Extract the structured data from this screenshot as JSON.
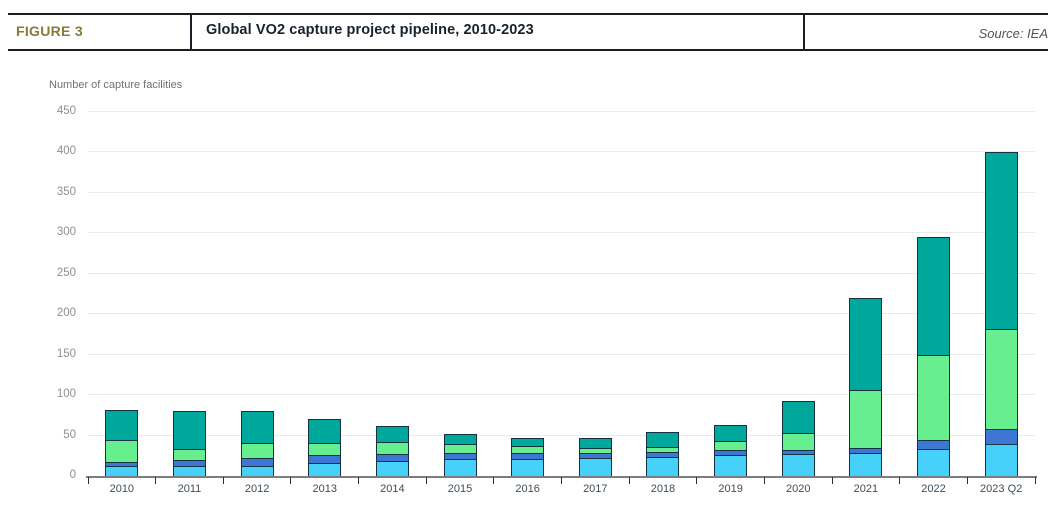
{
  "header": {
    "figure_label": "FIGURE 3",
    "title": "Global VO2 capture project pipeline, 2010-2023",
    "source": "Source: IEA"
  },
  "chart_data": {
    "type": "bar",
    "stacked": true,
    "title": "Global VO2 capture project pipeline, 2010-2023",
    "ylabel": "Number of capture facilities",
    "xlabel": "",
    "ylim": [
      0,
      450
    ],
    "yticks": [
      0,
      50,
      100,
      150,
      200,
      250,
      300,
      350,
      400,
      450
    ],
    "grid": true,
    "legend_visible": false,
    "categories": [
      "2010",
      "2011",
      "2012",
      "2013",
      "2014",
      "2015",
      "2016",
      "2017",
      "2018",
      "2019",
      "2020",
      "2021",
      "2022",
      "2023 Q2"
    ],
    "series": [
      {
        "name": "light-blue-bottom-segment",
        "color": "#46D1FA",
        "values": [
          12,
          13,
          12,
          16,
          18,
          21,
          21,
          22,
          23,
          26,
          27,
          28,
          34,
          40
        ]
      },
      {
        "name": "dark-blue-segment",
        "color": "#3E76D4",
        "values": [
          5,
          7,
          10,
          10,
          9,
          7,
          7,
          6,
          7,
          6,
          5,
          7,
          11,
          18
        ]
      },
      {
        "name": "light-green-segment",
        "color": "#67EE8F",
        "values": [
          28,
          13,
          19,
          15,
          15,
          11,
          9,
          7,
          6,
          11,
          21,
          71,
          105,
          124
        ]
      },
      {
        "name": "teal-top-segment",
        "color": "#00A89B",
        "values": [
          37,
          47,
          40,
          29,
          20,
          13,
          10,
          12,
          19,
          20,
          40,
          114,
          145,
          218
        ]
      }
    ],
    "totals": [
      82,
      80,
      81,
      70,
      62,
      52,
      47,
      47,
      55,
      63,
      93,
      220,
      295,
      400
    ]
  },
  "colors": {
    "bar_outline": "#14323F",
    "gridline": "#EAEAEA",
    "axis_line": "#7D7D7D",
    "figure_label": "#877A39",
    "title_text": "#18222C",
    "header_rule": "#1C1C26"
  }
}
